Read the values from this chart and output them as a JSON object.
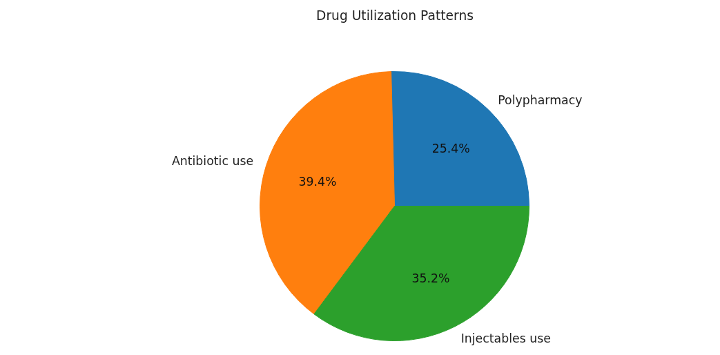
{
  "chart_data": {
    "type": "pie",
    "title": "Drug Utilization Patterns",
    "categories": [
      "Polypharmacy",
      "Antibiotic use",
      "Injectables use"
    ],
    "values": [
      25.4,
      39.4,
      35.2
    ],
    "value_labels": [
      "25.4%",
      "39.4%",
      "35.2%"
    ],
    "colors": [
      "#1f77b4",
      "#ff7f0e",
      "#2ca02c"
    ],
    "legend": false
  }
}
